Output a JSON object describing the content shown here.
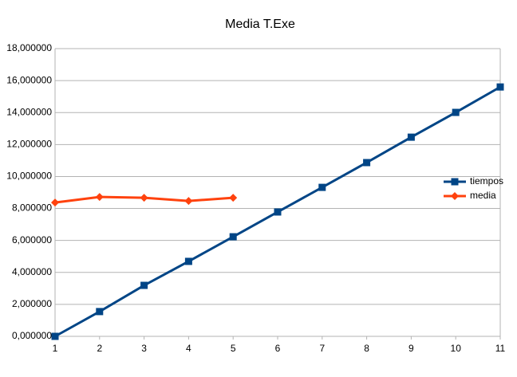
{
  "chart_data": {
    "type": "line",
    "title": "Media T.Exe",
    "x": [
      1,
      2,
      3,
      4,
      5,
      6,
      7,
      8,
      9,
      10,
      11
    ],
    "xlim": [
      1,
      11
    ],
    "xticks": [
      1,
      2,
      3,
      4,
      5,
      6,
      7,
      8,
      9,
      10,
      11
    ],
    "ylim": [
      0,
      18
    ],
    "yticks": [
      {
        "value": 0,
        "label": "0,000000"
      },
      {
        "value": 2,
        "label": "2,000000"
      },
      {
        "value": 4,
        "label": "4,000000"
      },
      {
        "value": 6,
        "label": "6,000000"
      },
      {
        "value": 8,
        "label": "8,000000"
      },
      {
        "value": 10,
        "label": "10,000000"
      },
      {
        "value": 12,
        "label": "12,000000"
      },
      {
        "value": 14,
        "label": "14,000000"
      },
      {
        "value": 16,
        "label": "16,000000"
      },
      {
        "value": 18,
        "label": "18,000000"
      }
    ],
    "grid": true,
    "legend": "right",
    "series": [
      {
        "name": "tiempos",
        "color": "#004586",
        "marker": "square",
        "values": [
          0,
          1.55,
          3.19,
          4.69,
          6.23,
          7.78,
          9.32,
          10.87,
          12.46,
          14.01,
          15.6
        ]
      },
      {
        "name": "media",
        "color": "#ff420e",
        "marker": "diamond",
        "values": [
          8.37,
          8.72,
          8.67,
          8.47,
          8.67,
          null,
          null,
          null,
          null,
          null,
          null
        ]
      }
    ]
  }
}
